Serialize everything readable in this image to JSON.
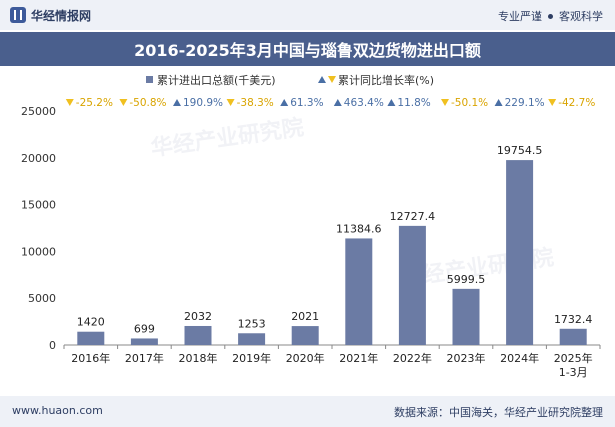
{
  "header": {
    "brand_name": "华经情报网",
    "slogan_left": "专业严谨",
    "slogan_right": "客观科学"
  },
  "watermark": "华经产业研究院",
  "footer": {
    "site": "www.huaon.com",
    "source": "数据来源：中国海关，华经产业研究院整理"
  },
  "colors": {
    "bar": "#6b7ba4",
    "up": "#4a6fa5",
    "down": "#f0c020",
    "title_bg": "#4a5f8d"
  },
  "chart_data": {
    "type": "bar",
    "title": "2016-2025年3月中国与瑙鲁双边货物进出口额",
    "categories": [
      "2016年",
      "2017年",
      "2018年",
      "2019年",
      "2020年",
      "2021年",
      "2022年",
      "2023年",
      "2024年",
      "2025年\n1-3月"
    ],
    "series": [
      {
        "name": "累计进出口总额(千美元)",
        "values": [
          1420,
          699,
          2032,
          1253,
          2021,
          11384.6,
          12727.4,
          5999.5,
          19754.5,
          1732.4
        ],
        "labels": [
          "1420",
          "699",
          "2032",
          "1253",
          "2021",
          "11384.6",
          "12727.4",
          "5999.5",
          "19754.5",
          "1732.4"
        ]
      },
      {
        "name": "累计同比增长率(%)",
        "values": [
          -25.2,
          -50.8,
          190.9,
          -38.3,
          61.3,
          463.4,
          11.8,
          -50.1,
          229.1,
          -42.7
        ],
        "labels": [
          "-25.2%",
          "-50.8%",
          "190.9%",
          "-38.3%",
          "61.3%",
          "463.4%",
          "11.8%",
          "-50.1%",
          "229.1%",
          "-42.7%"
        ]
      }
    ],
    "ylim": [
      0,
      25000
    ],
    "yticks": [
      "0",
      "5000",
      "10000",
      "15000",
      "20000",
      "25000"
    ],
    "legend": "top-center",
    "grid": false
  }
}
